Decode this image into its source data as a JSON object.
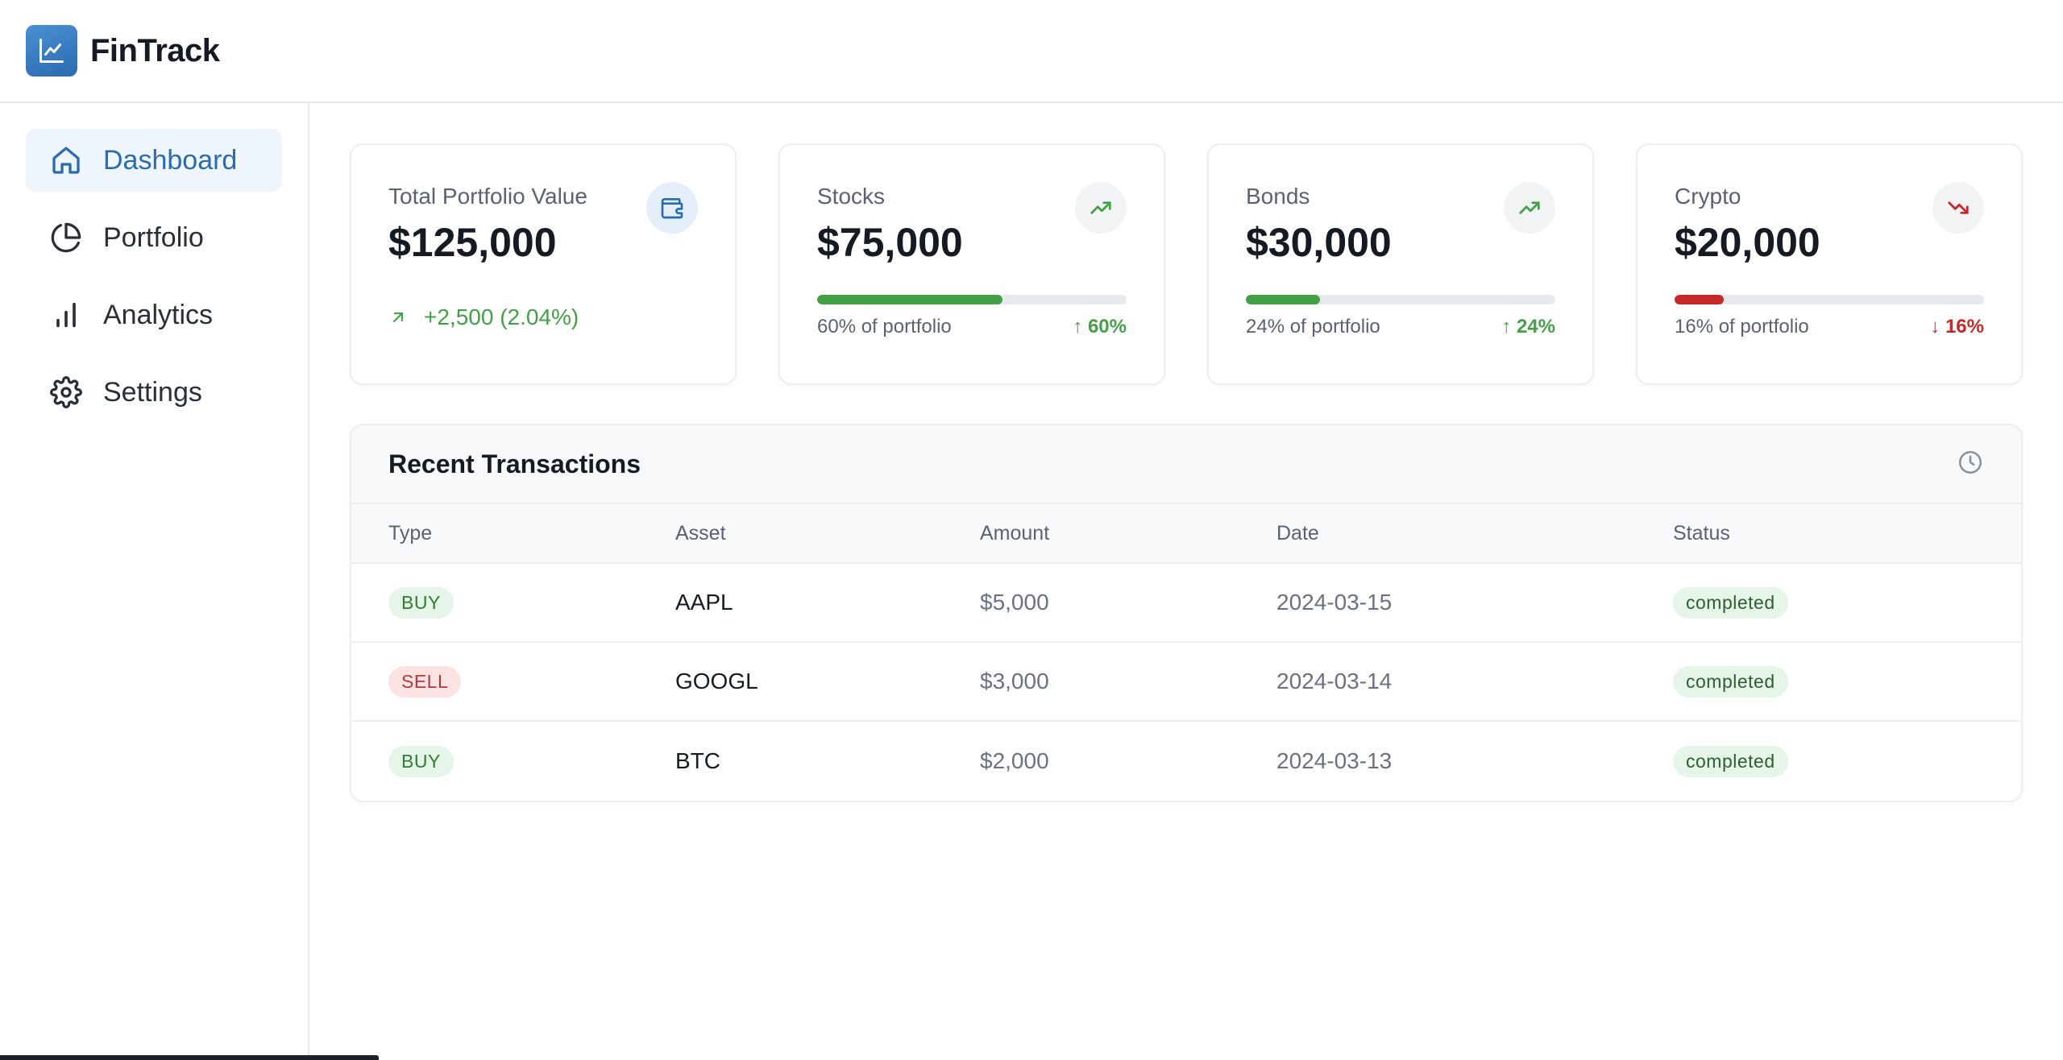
{
  "app": {
    "name": "FinTrack",
    "logo_icon": "line-chart-icon"
  },
  "sidebar": {
    "items": [
      {
        "label": "Dashboard",
        "icon": "home-icon",
        "active": true
      },
      {
        "label": "Portfolio",
        "icon": "pie-chart-icon",
        "active": false
      },
      {
        "label": "Analytics",
        "icon": "bar-chart-icon",
        "active": false
      },
      {
        "label": "Settings",
        "icon": "gear-icon",
        "active": false
      }
    ]
  },
  "cards": [
    {
      "label": "Total Portfolio Value",
      "value": "$125,000",
      "icon": "wallet-icon",
      "change": "+2,500 (2.04%)"
    },
    {
      "label": "Stocks",
      "value": "$75,000",
      "icon": "trending-up-icon",
      "share": 60,
      "meta": "60% of portfolio",
      "trend": "60%",
      "direction": "up"
    },
    {
      "label": "Bonds",
      "value": "$30,000",
      "icon": "trending-up-icon",
      "share": 24,
      "meta": "24% of portfolio",
      "trend": "24%",
      "direction": "up"
    },
    {
      "label": "Crypto",
      "value": "$20,000",
      "icon": "trending-down-icon",
      "share": 16,
      "meta": "16% of portfolio",
      "trend": "16%",
      "direction": "down"
    }
  ],
  "transactions": {
    "title": "Recent Transactions",
    "icon": "clock-icon",
    "columns": [
      "Type",
      "Asset",
      "Amount",
      "Date",
      "Status"
    ],
    "rows": [
      {
        "type": "BUY",
        "asset": "AAPL",
        "amount": "$5,000",
        "date": "2024-03-15",
        "status": "completed"
      },
      {
        "type": "SELL",
        "asset": "GOOGL",
        "amount": "$3,000",
        "date": "2024-03-14",
        "status": "completed"
      },
      {
        "type": "BUY",
        "asset": "BTC",
        "amount": "$2,000",
        "date": "2024-03-13",
        "status": "completed"
      }
    ]
  },
  "colors": {
    "accent": "#2b6cb0",
    "positive": "#43a047",
    "negative": "#c62828"
  }
}
